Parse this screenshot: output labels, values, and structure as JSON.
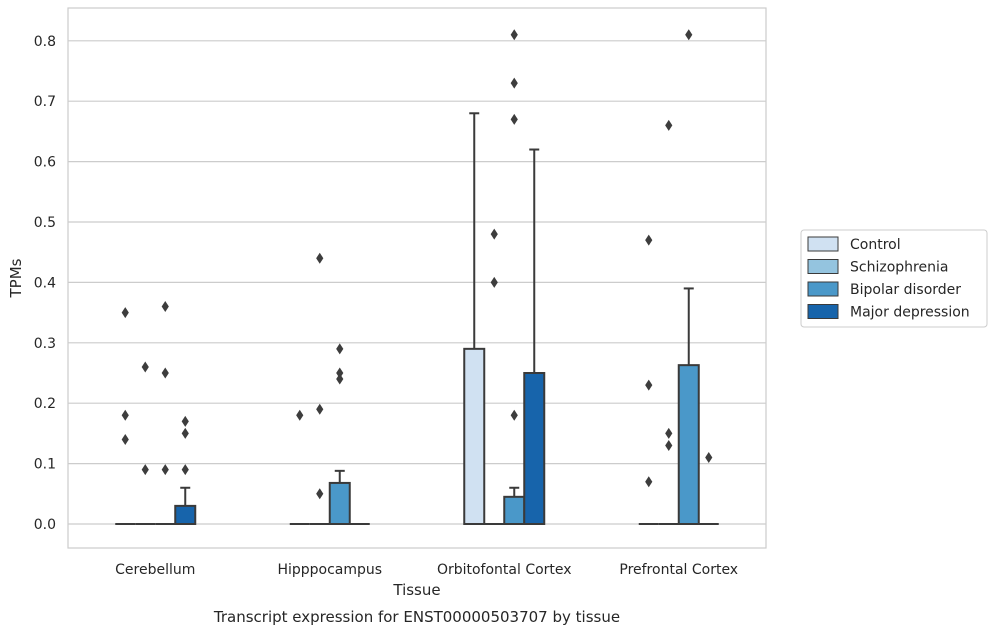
{
  "chart_data": {
    "type": "box",
    "caption": "Transcript expression for ENST00000503707 by tissue",
    "xlabel": "Tissue",
    "ylabel": "TPMs",
    "ylim": [
      -0.04,
      0.85
    ],
    "yticks": [
      "0.0",
      "0.1",
      "0.2",
      "0.3",
      "0.4",
      "0.5",
      "0.6",
      "0.7",
      "0.8"
    ],
    "categories": [
      "Cerebellum",
      "Hipppocampus",
      "Orbitofontal Cortex",
      "Prefrontal Cortex"
    ],
    "grid": true,
    "legend_position": "right",
    "series": [
      {
        "name": "Control",
        "color": "#d0e1f2",
        "boxes": [
          {
            "q1": 0,
            "median": 0,
            "q3": 0,
            "whisker_low": 0,
            "whisker_high": 0,
            "outliers": [
              0.35,
              0.18,
              0.14
            ]
          },
          {
            "q1": 0,
            "median": 0,
            "q3": 0,
            "whisker_low": 0,
            "whisker_high": 0,
            "outliers": [
              0.18
            ]
          },
          {
            "q1": 0,
            "median": 0,
            "q3": 0.29,
            "whisker_low": 0,
            "whisker_high": 0.68,
            "outliers": []
          },
          {
            "q1": 0,
            "median": 0,
            "q3": 0,
            "whisker_low": 0,
            "whisker_high": 0,
            "outliers": [
              0.47,
              0.23,
              0.07
            ]
          }
        ]
      },
      {
        "name": "Schizophrenia",
        "color": "#94c4df",
        "boxes": [
          {
            "q1": 0,
            "median": 0,
            "q3": 0,
            "whisker_low": 0,
            "whisker_high": 0,
            "outliers": [
              0.26,
              0.09
            ]
          },
          {
            "q1": 0,
            "median": 0,
            "q3": 0,
            "whisker_low": 0,
            "whisker_high": 0,
            "outliers": [
              0.44,
              0.19,
              0.05
            ]
          },
          {
            "q1": 0,
            "median": 0,
            "q3": 0,
            "whisker_low": 0,
            "whisker_high": 0,
            "outliers": [
              0.48,
              0.4
            ]
          },
          {
            "q1": 0,
            "median": 0,
            "q3": 0,
            "whisker_low": 0,
            "whisker_high": 0,
            "outliers": [
              0.66,
              0.15,
              0.13
            ]
          }
        ]
      },
      {
        "name": "Bipolar disorder",
        "color": "#4a98c9",
        "boxes": [
          {
            "q1": 0,
            "median": 0,
            "q3": 0,
            "whisker_low": 0,
            "whisker_high": 0,
            "outliers": [
              0.36,
              0.25,
              0.09
            ]
          },
          {
            "q1": 0,
            "median": 0,
            "q3": 0.068,
            "whisker_low": 0,
            "whisker_high": 0.088,
            "outliers": [
              0.29,
              0.25,
              0.24
            ]
          },
          {
            "q1": 0,
            "median": 0,
            "q3": 0.045,
            "whisker_low": 0,
            "whisker_high": 0.06,
            "outliers": [
              0.81,
              0.73,
              0.67,
              0.18
            ]
          },
          {
            "q1": 0,
            "median": 0,
            "q3": 0.263,
            "whisker_low": 0,
            "whisker_high": 0.39,
            "outliers": [
              0.81
            ]
          }
        ]
      },
      {
        "name": "Major depression",
        "color": "#1764ab",
        "boxes": [
          {
            "q1": 0,
            "median": 0,
            "q3": 0.03,
            "whisker_low": 0,
            "whisker_high": 0.06,
            "outliers": [
              0.17,
              0.15,
              0.09
            ]
          },
          {
            "q1": 0,
            "median": 0,
            "q3": 0,
            "whisker_low": 0,
            "whisker_high": 0,
            "outliers": []
          },
          {
            "q1": 0,
            "median": 0,
            "q3": 0.25,
            "whisker_low": 0,
            "whisker_high": 0.62,
            "outliers": []
          },
          {
            "q1": 0,
            "median": 0,
            "q3": 0,
            "whisker_low": 0,
            "whisker_high": 0,
            "outliers": [
              0.11
            ]
          }
        ]
      }
    ]
  }
}
